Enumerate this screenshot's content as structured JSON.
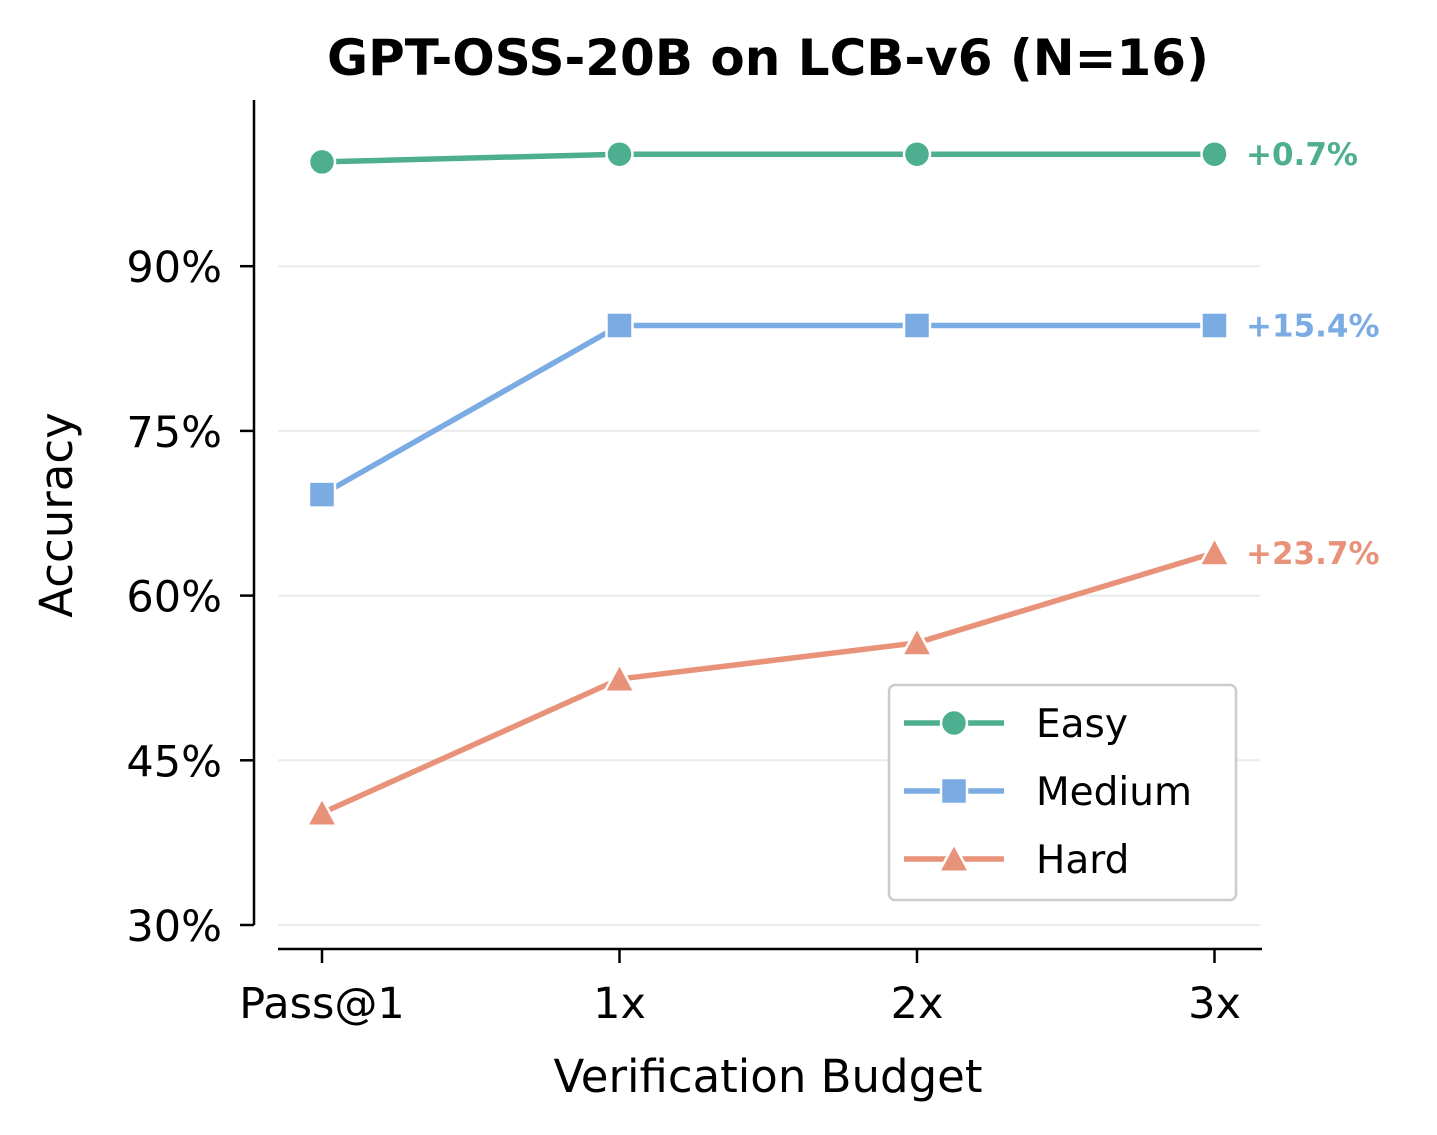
{
  "chart_data": {
    "type": "line",
    "title": "GPT-OSS-20B on LCB-v6 (N=16)",
    "xlabel": "Verification Budget",
    "ylabel": "Accuracy",
    "categories": [
      "Pass@1",
      "1x",
      "2x",
      "3x"
    ],
    "ylim": [
      30,
      105
    ],
    "yticks": [
      30,
      45,
      60,
      75,
      90
    ],
    "ytick_labels": [
      "30%",
      "45%",
      "60%",
      "75%",
      "90%"
    ],
    "grid": true,
    "legend_position": "lower-right",
    "series": [
      {
        "name": "Easy",
        "values": [
          99.5,
          100.2,
          100.2,
          100.2
        ],
        "color": "#4daf8f",
        "marker": "circle",
        "gain_label": "+0.7%"
      },
      {
        "name": "Medium",
        "values": [
          69.2,
          84.6,
          84.6,
          84.6
        ],
        "color": "#7aabe3",
        "marker": "square",
        "gain_label": "+15.4%"
      },
      {
        "name": "Hard",
        "values": [
          40.2,
          52.4,
          55.7,
          63.9
        ],
        "color": "#e8927a",
        "marker": "triangle",
        "gain_label": "+23.7%"
      }
    ]
  }
}
